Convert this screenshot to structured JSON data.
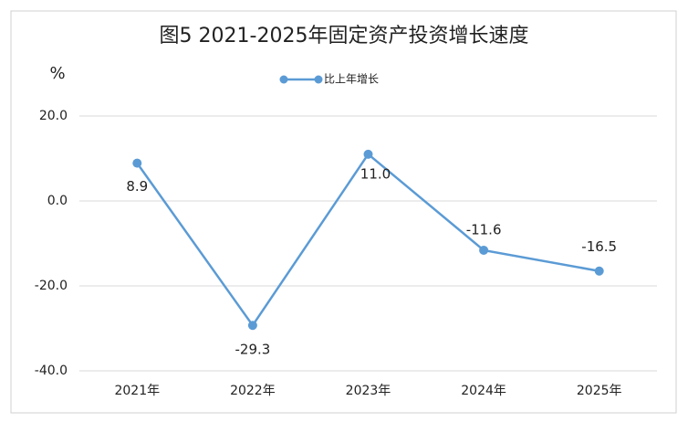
{
  "chart_data": {
    "type": "line",
    "title": "图5  2021-2025年固定资产投资增长速度",
    "y_label": "%",
    "categories": [
      "2021年",
      "2022年",
      "2023年",
      "2024年",
      "2025年"
    ],
    "series": [
      {
        "name": "比上年增长",
        "color": "#5b9bd5",
        "values": [
          8.9,
          -29.3,
          11.0,
          -11.6,
          -16.5
        ],
        "value_labels": [
          "8.9",
          "-29.3",
          "11.0",
          "-11.6",
          "-16.5"
        ]
      }
    ],
    "ylim": [
      -40,
      20
    ],
    "yticks": [
      {
        "value": -40,
        "label": "-40.0"
      },
      {
        "value": -20,
        "label": "-20.0"
      },
      {
        "value": 0,
        "label": "0.0"
      },
      {
        "value": 20,
        "label": "20.0"
      }
    ],
    "grid": true
  }
}
